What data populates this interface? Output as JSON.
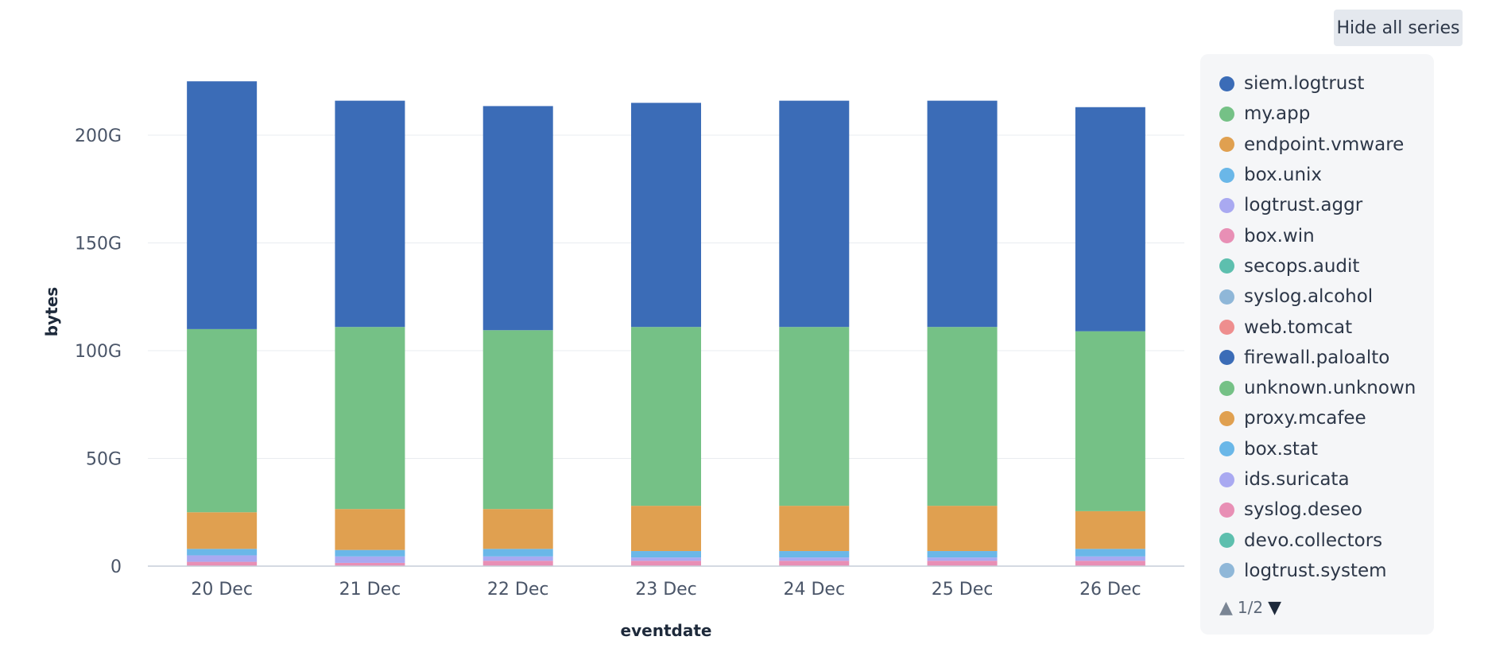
{
  "controls": {
    "hide_all_label": "Hide all series"
  },
  "legend": {
    "items": [
      {
        "label": "siem.logtrust",
        "color": "#3b6cb7"
      },
      {
        "label": "my.app",
        "color": "#75c186"
      },
      {
        "label": "endpoint.vmware",
        "color": "#e0a050"
      },
      {
        "label": "box.unix",
        "color": "#6ab7e8"
      },
      {
        "label": "logtrust.aggr",
        "color": "#a9a9f1"
      },
      {
        "label": "box.win",
        "color": "#e88fb5"
      },
      {
        "label": "secops.audit",
        "color": "#5dbfae"
      },
      {
        "label": "syslog.alcohol",
        "color": "#8fb7d8"
      },
      {
        "label": "web.tomcat",
        "color": "#ee8e8e"
      },
      {
        "label": "firewall.paloalto",
        "color": "#3b6cb7"
      },
      {
        "label": "unknown.unknown",
        "color": "#75c186"
      },
      {
        "label": "proxy.mcafee",
        "color": "#e0a050"
      },
      {
        "label": "box.stat",
        "color": "#6ab7e8"
      },
      {
        "label": "ids.suricata",
        "color": "#a9a9f1"
      },
      {
        "label": "syslog.deseo",
        "color": "#e88fb5"
      },
      {
        "label": "devo.collectors",
        "color": "#5dbfae"
      },
      {
        "label": "logtrust.system",
        "color": "#8fb7d8"
      }
    ],
    "pager": {
      "prev_icon": "triangle-up-icon",
      "next_icon": "triangle-down-icon",
      "text": "1/2"
    }
  },
  "chart_data": {
    "type": "bar",
    "stacked": true,
    "xlabel": "eventdate",
    "ylabel": "bytes",
    "ylim": [
      0,
      230
    ],
    "yticks": [
      {
        "value": 0,
        "label": "0"
      },
      {
        "value": 50,
        "label": "50G"
      },
      {
        "value": 100,
        "label": "100G"
      },
      {
        "value": 150,
        "label": "150G"
      },
      {
        "value": 200,
        "label": "200G"
      }
    ],
    "grid": true,
    "legend_position": "right",
    "categories": [
      "20 Dec",
      "21 Dec",
      "22 Dec",
      "23 Dec",
      "24 Dec",
      "25 Dec",
      "26 Dec"
    ],
    "series": [
      {
        "name": "box.win",
        "color": "#e88fb5",
        "values": [
          2.0,
          1.5,
          2.5,
          2.5,
          2.5,
          2.5,
          2.5
        ]
      },
      {
        "name": "logtrust.aggr",
        "color": "#a9a9f1",
        "values": [
          3.0,
          3.0,
          2.0,
          1.5,
          1.5,
          1.5,
          2.0
        ]
      },
      {
        "name": "box.unix",
        "color": "#6ab7e8",
        "values": [
          3.0,
          3.0,
          3.5,
          3.0,
          3.0,
          3.0,
          3.5
        ]
      },
      {
        "name": "endpoint.vmware",
        "color": "#e0a050",
        "values": [
          17.0,
          19.0,
          18.5,
          21.0,
          21.0,
          21.0,
          17.5
        ]
      },
      {
        "name": "my.app",
        "color": "#75c186",
        "values": [
          85.0,
          84.5,
          83.0,
          83.0,
          83.0,
          83.0,
          83.5
        ]
      },
      {
        "name": "siem.logtrust",
        "color": "#3b6cb7",
        "values": [
          115.0,
          105.0,
          104.0,
          104.0,
          105.0,
          105.0,
          104.0
        ]
      }
    ]
  }
}
